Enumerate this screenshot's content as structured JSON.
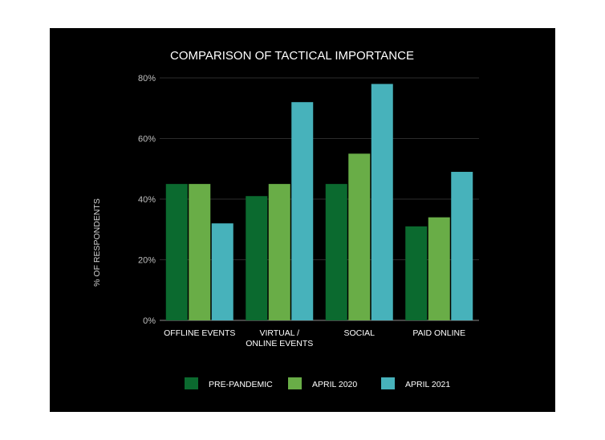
{
  "chart_data": {
    "type": "bar",
    "title": "COMPARISON OF TACTICAL IMPORTANCE",
    "xlabel": "",
    "ylabel": "% OF RESPONDENTS",
    "categories": [
      [
        "OFFLINE EVENTS"
      ],
      [
        "VIRTUAL /",
        "ONLINE EVENTS"
      ],
      [
        "SOCIAL"
      ],
      [
        "PAID ONLINE"
      ]
    ],
    "series": [
      {
        "name": "PRE-PANDEMIC",
        "color": "#0b6a2f",
        "values": [
          45,
          41,
          45,
          31
        ]
      },
      {
        "name": "APRIL 2020",
        "color": "#69ad47",
        "values": [
          45,
          45,
          55,
          34
        ]
      },
      {
        "name": "APRIL 2021",
        "color": "#47b2bb",
        "values": [
          32,
          72,
          78,
          49
        ]
      }
    ],
    "ylim": [
      0,
      80
    ],
    "yticks": [
      "0%",
      "20%",
      "40%",
      "60%",
      "80%"
    ],
    "ytick_values": [
      0,
      20,
      40,
      60,
      80
    ],
    "grid": true,
    "legend_position": "bottom"
  }
}
